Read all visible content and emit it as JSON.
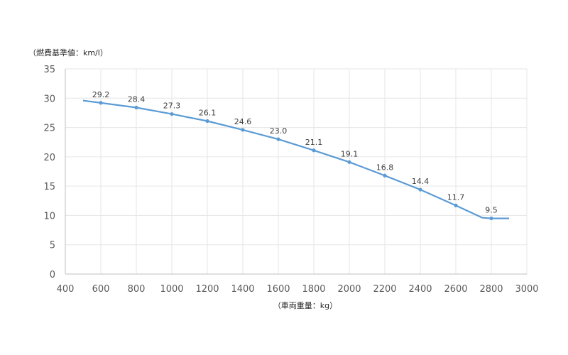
{
  "chart_data": {
    "type": "line",
    "ylabel": "（燃費基準値：km/l）",
    "xlabel": "（車両重量：kg）",
    "xlim": [
      400,
      3000
    ],
    "ylim": [
      0,
      35
    ],
    "x_ticks": [
      400,
      600,
      800,
      1000,
      1200,
      1400,
      1600,
      1800,
      2000,
      2200,
      2400,
      2600,
      2800,
      3000
    ],
    "y_ticks": [
      0,
      5,
      10,
      15,
      20,
      25,
      30,
      35
    ],
    "grid": true,
    "legend": "none",
    "line_color": "#5b9bd5",
    "series": [
      {
        "line": [
          {
            "x": 500,
            "y": 29.6
          },
          {
            "x": 600,
            "y": 29.2
          },
          {
            "x": 800,
            "y": 28.4
          },
          {
            "x": 1000,
            "y": 27.3
          },
          {
            "x": 1200,
            "y": 26.1
          },
          {
            "x": 1400,
            "y": 24.6
          },
          {
            "x": 1600,
            "y": 23.0
          },
          {
            "x": 1800,
            "y": 21.1
          },
          {
            "x": 2000,
            "y": 19.1
          },
          {
            "x": 2200,
            "y": 16.8
          },
          {
            "x": 2400,
            "y": 14.4
          },
          {
            "x": 2600,
            "y": 11.7
          },
          {
            "x": 2750,
            "y": 9.6
          },
          {
            "x": 2800,
            "y": 9.5
          },
          {
            "x": 2900,
            "y": 9.5
          }
        ],
        "points": [
          {
            "x": 600,
            "y": 29.2,
            "label": "29.2"
          },
          {
            "x": 800,
            "y": 28.4,
            "label": "28.4"
          },
          {
            "x": 1000,
            "y": 27.3,
            "label": "27.3"
          },
          {
            "x": 1200,
            "y": 26.1,
            "label": "26.1"
          },
          {
            "x": 1400,
            "y": 24.6,
            "label": "24.6"
          },
          {
            "x": 1600,
            "y": 23.0,
            "label": "23.0"
          },
          {
            "x": 1800,
            "y": 21.1,
            "label": "21.1"
          },
          {
            "x": 2000,
            "y": 19.1,
            "label": "19.1"
          },
          {
            "x": 2200,
            "y": 16.8,
            "label": "16.8"
          },
          {
            "x": 2400,
            "y": 14.4,
            "label": "14.4"
          },
          {
            "x": 2600,
            "y": 11.7,
            "label": "11.7"
          },
          {
            "x": 2800,
            "y": 9.5,
            "label": "9.5"
          }
        ]
      }
    ]
  }
}
